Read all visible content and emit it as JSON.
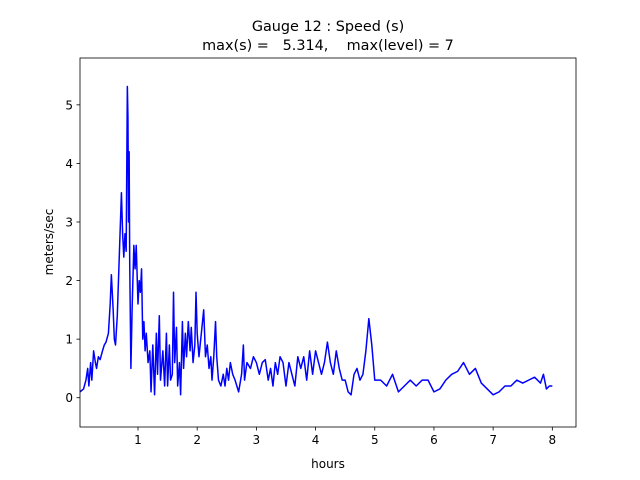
{
  "chart_data": {
    "type": "line",
    "title": [
      "Gauge 12 : Speed (s)",
      "max(s) =   5.314,    max(level) = 7"
    ],
    "x_label": "hours",
    "y_label": "meters/sec",
    "xlim": [
      0.02,
      8.4
    ],
    "ylim": [
      -0.5,
      5.8
    ],
    "xticks": [
      1,
      2,
      3,
      4,
      5,
      6,
      7,
      8
    ],
    "yticks": [
      0,
      1,
      2,
      3,
      4,
      5
    ],
    "x": [
      0.02,
      0.08,
      0.12,
      0.15,
      0.17,
      0.2,
      0.22,
      0.25,
      0.28,
      0.3,
      0.33,
      0.36,
      0.4,
      0.43,
      0.46,
      0.5,
      0.53,
      0.55,
      0.58,
      0.6,
      0.62,
      0.65,
      0.68,
      0.71,
      0.72,
      0.74,
      0.76,
      0.78,
      0.8,
      0.82,
      0.83,
      0.84,
      0.85,
      0.86,
      0.88,
      0.9,
      0.93,
      0.95,
      0.97,
      1.0,
      1.02,
      1.04,
      1.06,
      1.08,
      1.1,
      1.12,
      1.14,
      1.17,
      1.2,
      1.22,
      1.25,
      1.28,
      1.31,
      1.33,
      1.36,
      1.38,
      1.42,
      1.45,
      1.48,
      1.5,
      1.53,
      1.55,
      1.58,
      1.6,
      1.62,
      1.65,
      1.67,
      1.7,
      1.72,
      1.75,
      1.77,
      1.8,
      1.82,
      1.85,
      1.88,
      1.9,
      1.93,
      1.96,
      1.98,
      2.0,
      2.03,
      2.06,
      2.08,
      2.11,
      2.14,
      2.17,
      2.2,
      2.23,
      2.25,
      2.28,
      2.31,
      2.33,
      2.36,
      2.4,
      2.44,
      2.47,
      2.5,
      2.53,
      2.56,
      2.6,
      2.64,
      2.7,
      2.75,
      2.78,
      2.8,
      2.84,
      2.9,
      2.95,
      3.0,
      3.05,
      3.1,
      3.15,
      3.2,
      3.24,
      3.28,
      3.32,
      3.36,
      3.4,
      3.45,
      3.5,
      3.55,
      3.6,
      3.65,
      3.7,
      3.75,
      3.8,
      3.85,
      3.9,
      3.95,
      4.0,
      4.05,
      4.1,
      4.15,
      4.2,
      4.25,
      4.3,
      4.35,
      4.4,
      4.45,
      4.5,
      4.55,
      4.6,
      4.65,
      4.7,
      4.75,
      4.8,
      4.85,
      4.9,
      4.95,
      5.0,
      5.1,
      5.2,
      5.3,
      5.4,
      5.5,
      5.6,
      5.7,
      5.8,
      5.9,
      6.0,
      6.1,
      6.2,
      6.3,
      6.4,
      6.5,
      6.6,
      6.7,
      6.8,
      6.9,
      7.0,
      7.1,
      7.2,
      7.3,
      7.4,
      7.5,
      7.6,
      7.7,
      7.8,
      7.85,
      7.9,
      7.95,
      8.0
    ],
    "series": [
      {
        "color": "#0000ff",
        "values": [
          0.1,
          0.15,
          0.3,
          0.5,
          0.2,
          0.6,
          0.3,
          0.8,
          0.6,
          0.5,
          0.7,
          0.65,
          0.8,
          0.9,
          0.95,
          1.1,
          1.6,
          2.1,
          1.5,
          1.0,
          0.9,
          1.4,
          2.3,
          3.2,
          3.5,
          2.8,
          2.4,
          2.8,
          2.5,
          5.314,
          4.8,
          3.0,
          4.2,
          2.3,
          0.5,
          1.5,
          2.6,
          2.2,
          2.6,
          1.6,
          2.0,
          1.8,
          2.2,
          1.0,
          1.3,
          0.8,
          1.1,
          0.6,
          0.8,
          0.1,
          0.9,
          0.05,
          1.1,
          0.4,
          1.4,
          0.3,
          0.8,
          0.2,
          1.1,
          0.2,
          0.9,
          0.3,
          0.4,
          1.8,
          0.6,
          1.2,
          0.2,
          0.6,
          0.05,
          1.3,
          0.5,
          1.1,
          0.7,
          1.3,
          0.8,
          1.2,
          0.6,
          0.9,
          1.8,
          1.1,
          0.7,
          1.0,
          1.2,
          1.5,
          0.7,
          0.9,
          0.5,
          0.7,
          0.3,
          0.7,
          1.3,
          0.7,
          0.3,
          0.2,
          0.4,
          0.2,
          0.5,
          0.3,
          0.6,
          0.4,
          0.3,
          0.1,
          0.4,
          0.9,
          0.3,
          0.6,
          0.5,
          0.7,
          0.6,
          0.4,
          0.6,
          0.65,
          0.3,
          0.5,
          0.2,
          0.6,
          0.4,
          0.7,
          0.6,
          0.2,
          0.6,
          0.4,
          0.2,
          0.7,
          0.5,
          0.7,
          0.3,
          0.8,
          0.4,
          0.8,
          0.6,
          0.4,
          0.6,
          0.95,
          0.6,
          0.4,
          0.8,
          0.5,
          0.3,
          0.3,
          0.1,
          0.05,
          0.4,
          0.5,
          0.3,
          0.4,
          0.8,
          1.35,
          0.9,
          0.3,
          0.3,
          0.2,
          0.4,
          0.1,
          0.2,
          0.3,
          0.2,
          0.3,
          0.3,
          0.1,
          0.15,
          0.3,
          0.4,
          0.45,
          0.6,
          0.4,
          0.5,
          0.25,
          0.15,
          0.05,
          0.1,
          0.2,
          0.2,
          0.3,
          0.25,
          0.3,
          0.35,
          0.25,
          0.4,
          0.15,
          0.2,
          0.2
        ]
      }
    ]
  }
}
